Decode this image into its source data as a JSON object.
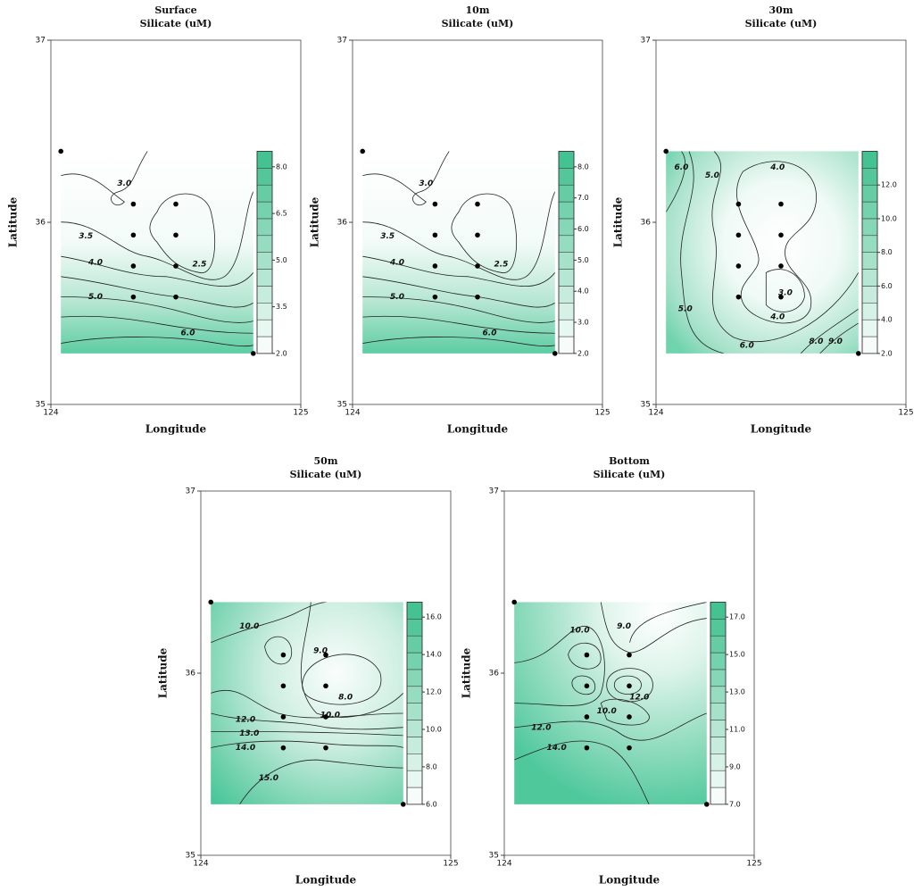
{
  "chart_data": [
    {
      "type": "contour",
      "title": "Surface",
      "subtitle": "Silicate (uM)",
      "xlabel": "Longitude",
      "ylabel": "Latitude",
      "xlim": [
        124,
        125
      ],
      "ylim": [
        35,
        37
      ],
      "xticks": [
        124,
        125
      ],
      "yticks": [
        35,
        36,
        37
      ],
      "stations": {
        "x": [
          124.04,
          124.33,
          124.5,
          124.33,
          124.5,
          124.33,
          124.5,
          124.33,
          124.5,
          124.81
        ],
        "y": [
          36.39,
          36.1,
          36.1,
          35.93,
          35.93,
          35.76,
          35.76,
          35.59,
          35.59,
          35.28
        ]
      },
      "color": "#3cbf8c",
      "colorbar_lim": [
        2,
        8.5
      ],
      "colorbar_ticks": [
        {
          "value": 2,
          "label": "2.0"
        },
        {
          "value": 3.5,
          "label": "3.5"
        },
        {
          "value": 5,
          "label": "5.0"
        },
        {
          "value": 6.5,
          "label": "6.5"
        },
        {
          "value": 8,
          "label": "8.0"
        }
      ],
      "contour_labels": [
        {
          "value": 3,
          "label": "3.0"
        },
        {
          "value": 2.5,
          "label": "2.5"
        },
        {
          "value": 3.5,
          "label": "3.5"
        },
        {
          "value": 4,
          "label": "4.0"
        },
        {
          "value": 5,
          "label": "5.0"
        },
        {
          "value": 6,
          "label": "6.0"
        }
      ]
    },
    {
      "type": "contour",
      "title": "10m",
      "subtitle": "Silicate (uM)",
      "xlabel": "Longitude",
      "ylabel": "Latitude",
      "xlim": [
        124,
        125
      ],
      "ylim": [
        35,
        37
      ],
      "xticks": [
        124,
        125
      ],
      "yticks": [
        35,
        36,
        37
      ],
      "stations": {
        "x": [
          124.04,
          124.33,
          124.5,
          124.33,
          124.5,
          124.33,
          124.5,
          124.33,
          124.5,
          124.81
        ],
        "y": [
          36.39,
          36.1,
          36.1,
          35.93,
          35.93,
          35.76,
          35.76,
          35.59,
          35.59,
          35.28
        ]
      },
      "color": "#3cbf8c",
      "colorbar_lim": [
        2,
        8.5
      ],
      "colorbar_ticks": [
        {
          "value": 2,
          "label": "2.0"
        },
        {
          "value": 3,
          "label": "3.0"
        },
        {
          "value": 4,
          "label": "4.0"
        },
        {
          "value": 5,
          "label": "5.0"
        },
        {
          "value": 6,
          "label": "6.0"
        },
        {
          "value": 7,
          "label": "7.0"
        },
        {
          "value": 8,
          "label": "8.0"
        }
      ],
      "contour_labels": [
        {
          "value": 3,
          "label": "3.0"
        },
        {
          "value": 2.5,
          "label": "2.5"
        },
        {
          "value": 3.5,
          "label": "3.5"
        },
        {
          "value": 4,
          "label": "4.0"
        },
        {
          "value": 5,
          "label": "5.0"
        },
        {
          "value": 6,
          "label": "6.0"
        }
      ]
    },
    {
      "type": "contour",
      "title": "30m",
      "subtitle": "Silicate (uM)",
      "xlabel": "Longitude",
      "ylabel": "Latitude",
      "xlim": [
        124,
        125
      ],
      "ylim": [
        35,
        37
      ],
      "xticks": [
        124,
        125
      ],
      "yticks": [
        35,
        36,
        37
      ],
      "stations": {
        "x": [
          124.04,
          124.33,
          124.5,
          124.33,
          124.5,
          124.33,
          124.5,
          124.33,
          124.5,
          124.81
        ],
        "y": [
          36.39,
          36.1,
          36.1,
          35.93,
          35.93,
          35.76,
          35.76,
          35.59,
          35.59,
          35.28
        ]
      },
      "color": "#3cbf8c",
      "colorbar_lim": [
        2,
        14
      ],
      "colorbar_ticks": [
        {
          "value": 2,
          "label": "2.0"
        },
        {
          "value": 4,
          "label": "4.0"
        },
        {
          "value": 6,
          "label": "6.0"
        },
        {
          "value": 8,
          "label": "8.0"
        },
        {
          "value": 10,
          "label": "10.0"
        },
        {
          "value": 12,
          "label": "12.0"
        }
      ],
      "contour_labels": [
        {
          "value": 6,
          "label": "6.0"
        },
        {
          "value": 5,
          "label": "5.0"
        },
        {
          "value": 4,
          "label": "4.0"
        },
        {
          "value": 3,
          "label": "3.0"
        },
        {
          "value": 4,
          "label": "4.0"
        },
        {
          "value": 5,
          "label": "5.0"
        },
        {
          "value": 6,
          "label": "6.0"
        },
        {
          "value": 8,
          "label": "8.0"
        },
        {
          "value": 9,
          "label": "9.0"
        }
      ]
    },
    {
      "type": "contour",
      "title": "50m",
      "subtitle": "Silicate (uM)",
      "xlabel": "Longitude",
      "ylabel": "Latitude",
      "xlim": [
        124,
        125
      ],
      "ylim": [
        35,
        37
      ],
      "xticks": [
        124,
        125
      ],
      "yticks": [
        35,
        36,
        37
      ],
      "stations": {
        "x": [
          124.04,
          124.33,
          124.5,
          124.33,
          124.5,
          124.33,
          124.5,
          124.33,
          124.5,
          124.81
        ],
        "y": [
          36.39,
          36.1,
          36.1,
          35.93,
          35.93,
          35.76,
          35.76,
          35.59,
          35.59,
          35.28
        ]
      },
      "color": "#3cbf8c",
      "colorbar_lim": [
        6,
        16.8
      ],
      "colorbar_ticks": [
        {
          "value": 6,
          "label": "6.0"
        },
        {
          "value": 8,
          "label": "8.0"
        },
        {
          "value": 10,
          "label": "10.0"
        },
        {
          "value": 12,
          "label": "12.0"
        },
        {
          "value": 14,
          "label": "14.0"
        },
        {
          "value": 16,
          "label": "16.0"
        }
      ],
      "contour_labels": [
        {
          "value": 10,
          "label": "10.0"
        },
        {
          "value": 9,
          "label": "9.0"
        },
        {
          "value": 8,
          "label": "8.0"
        },
        {
          "value": 10,
          "label": "10.0"
        },
        {
          "value": 12,
          "label": "12.0"
        },
        {
          "value": 13,
          "label": "13.0"
        },
        {
          "value": 14,
          "label": "14.0"
        },
        {
          "value": 15,
          "label": "15.0"
        }
      ]
    },
    {
      "type": "contour",
      "title": "Bottom",
      "subtitle": "Silicate (uM)",
      "xlabel": "Longitude",
      "ylabel": "Latitude",
      "xlim": [
        124,
        125
      ],
      "ylim": [
        35,
        37
      ],
      "xticks": [
        124,
        125
      ],
      "yticks": [
        35,
        36,
        37
      ],
      "stations": {
        "x": [
          124.04,
          124.33,
          124.5,
          124.33,
          124.5,
          124.33,
          124.5,
          124.33,
          124.5,
          124.81
        ],
        "y": [
          36.39,
          36.1,
          36.1,
          35.93,
          35.93,
          35.76,
          35.76,
          35.59,
          35.59,
          35.28
        ]
      },
      "color": "#3cbf8c",
      "colorbar_lim": [
        7,
        17.8
      ],
      "colorbar_ticks": [
        {
          "value": 7,
          "label": "7.0"
        },
        {
          "value": 9,
          "label": "9.0"
        },
        {
          "value": 11,
          "label": "11.0"
        },
        {
          "value": 13,
          "label": "13.0"
        },
        {
          "value": 15,
          "label": "15.0"
        },
        {
          "value": 17,
          "label": "17.0"
        }
      ],
      "contour_labels": [
        {
          "value": 10,
          "label": "10.0"
        },
        {
          "value": 9,
          "label": "9.0"
        },
        {
          "value": 12,
          "label": "12.0"
        },
        {
          "value": 10,
          "label": "10.0"
        },
        {
          "value": 12,
          "label": "12.0"
        },
        {
          "value": 14,
          "label": "14.0"
        }
      ]
    }
  ]
}
